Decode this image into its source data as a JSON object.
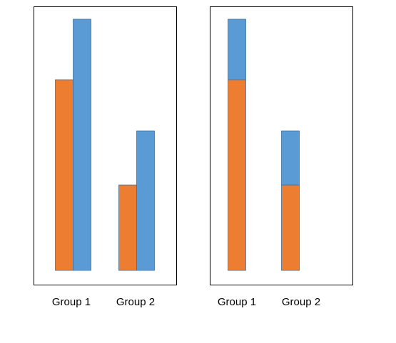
{
  "chart_data": [
    {
      "type": "bar",
      "mode": "grouped",
      "categories": [
        "Group 1",
        "Group 2"
      ],
      "series": [
        {
          "values": [
            268,
            120
          ],
          "color": "#ED7D31"
        },
        {
          "values": [
            353,
            196
          ],
          "color": "#5B9BD5"
        }
      ],
      "ylim": [
        0,
        373
      ],
      "grid": false,
      "legend": "none"
    },
    {
      "type": "bar",
      "mode": "stacked",
      "categories": [
        "Group 1",
        "Group 2"
      ],
      "series": [
        {
          "values": [
            268,
            120
          ],
          "color": "#ED7D31"
        },
        {
          "values": [
            85,
            76
          ],
          "color": "#5B9BD5"
        }
      ],
      "ylim": [
        0,
        373
      ],
      "grid": false,
      "legend": "none"
    }
  ]
}
